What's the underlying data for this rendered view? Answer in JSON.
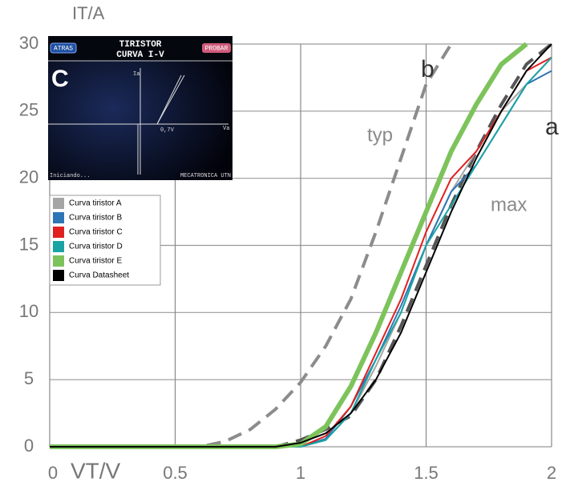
{
  "chart_data": {
    "type": "line",
    "xlabel": "VT/V",
    "ylabel": "IT/A",
    "xlim": [
      0,
      2
    ],
    "ylim": [
      0,
      30
    ],
    "xticks": [
      0,
      0.5,
      1,
      1.5,
      2
    ],
    "yticks": [
      0,
      5,
      10,
      15,
      20,
      25,
      30
    ],
    "grid": true,
    "x": [
      0,
      0.6,
      0.7,
      0.8,
      0.9,
      1.0,
      1.1,
      1.2,
      1.3,
      1.4,
      1.5,
      1.6,
      1.7,
      1.8,
      1.9,
      2.0
    ],
    "series": [
      {
        "name": "Curva tiristor A",
        "color": "#a5a5a5",
        "values": [
          0,
          0,
          0,
          0,
          0,
          0,
          0.5,
          2.5,
          6,
          10,
          15,
          19,
          22,
          25,
          27,
          29
        ]
      },
      {
        "name": "Curva tiristor B",
        "color": "#2e75b6",
        "values": [
          0,
          0,
          0,
          0,
          0,
          0,
          0.6,
          3,
          6.5,
          10.5,
          15,
          19,
          21,
          24,
          27,
          28
        ]
      },
      {
        "name": "Curva tiristor C",
        "color": "#e02020",
        "values": [
          0,
          0,
          0,
          0,
          0,
          0,
          0.8,
          3,
          7,
          11,
          16,
          20,
          22,
          25,
          28,
          29
        ]
      },
      {
        "name": "Curva tiristor D",
        "color": "#1aa3a3",
        "values": [
          0,
          0,
          0,
          0,
          0,
          0,
          0.5,
          2.5,
          6.5,
          10,
          15,
          18,
          21,
          24,
          27,
          29
        ]
      },
      {
        "name": "Curva tiristor E",
        "color": "#7dc35b",
        "values": [
          0,
          0,
          0,
          0,
          0,
          0.2,
          1.5,
          4.5,
          8.5,
          13,
          17.5,
          22,
          25.5,
          28.5,
          30,
          null
        ]
      },
      {
        "name": "Curva Datasheet",
        "color": "#000000",
        "values": [
          0,
          0,
          0,
          0,
          0,
          0.3,
          1,
          2.5,
          5,
          8.5,
          13,
          17.5,
          21.5,
          25,
          28,
          30
        ]
      }
    ],
    "reference_curves": [
      {
        "label": "b",
        "name": "typ",
        "color": "#8c8c8c",
        "values": [
          0,
          0,
          0.4,
          1.3,
          2.8,
          4.8,
          7.5,
          11,
          16,
          21.5,
          27,
          30,
          null,
          null,
          null,
          null
        ]
      },
      {
        "label": "a",
        "name": "max",
        "color": "#555555",
        "values": [
          0,
          0,
          0,
          0,
          0,
          0.5,
          1.3,
          2.3,
          5,
          9,
          13.5,
          18,
          22,
          25.5,
          28.5,
          30
        ]
      }
    ]
  },
  "inset": {
    "title": "TIRISTOR",
    "subtitle": "CURVA I-V",
    "back_button": "ATRAS",
    "test_button": "PROBAR",
    "panel_letter": "C",
    "y_axis": "Ia",
    "x_axis": "Va",
    "threshold": "0,7V",
    "status": "Iniciando...",
    "footer": "MECATRONICA UTN"
  }
}
